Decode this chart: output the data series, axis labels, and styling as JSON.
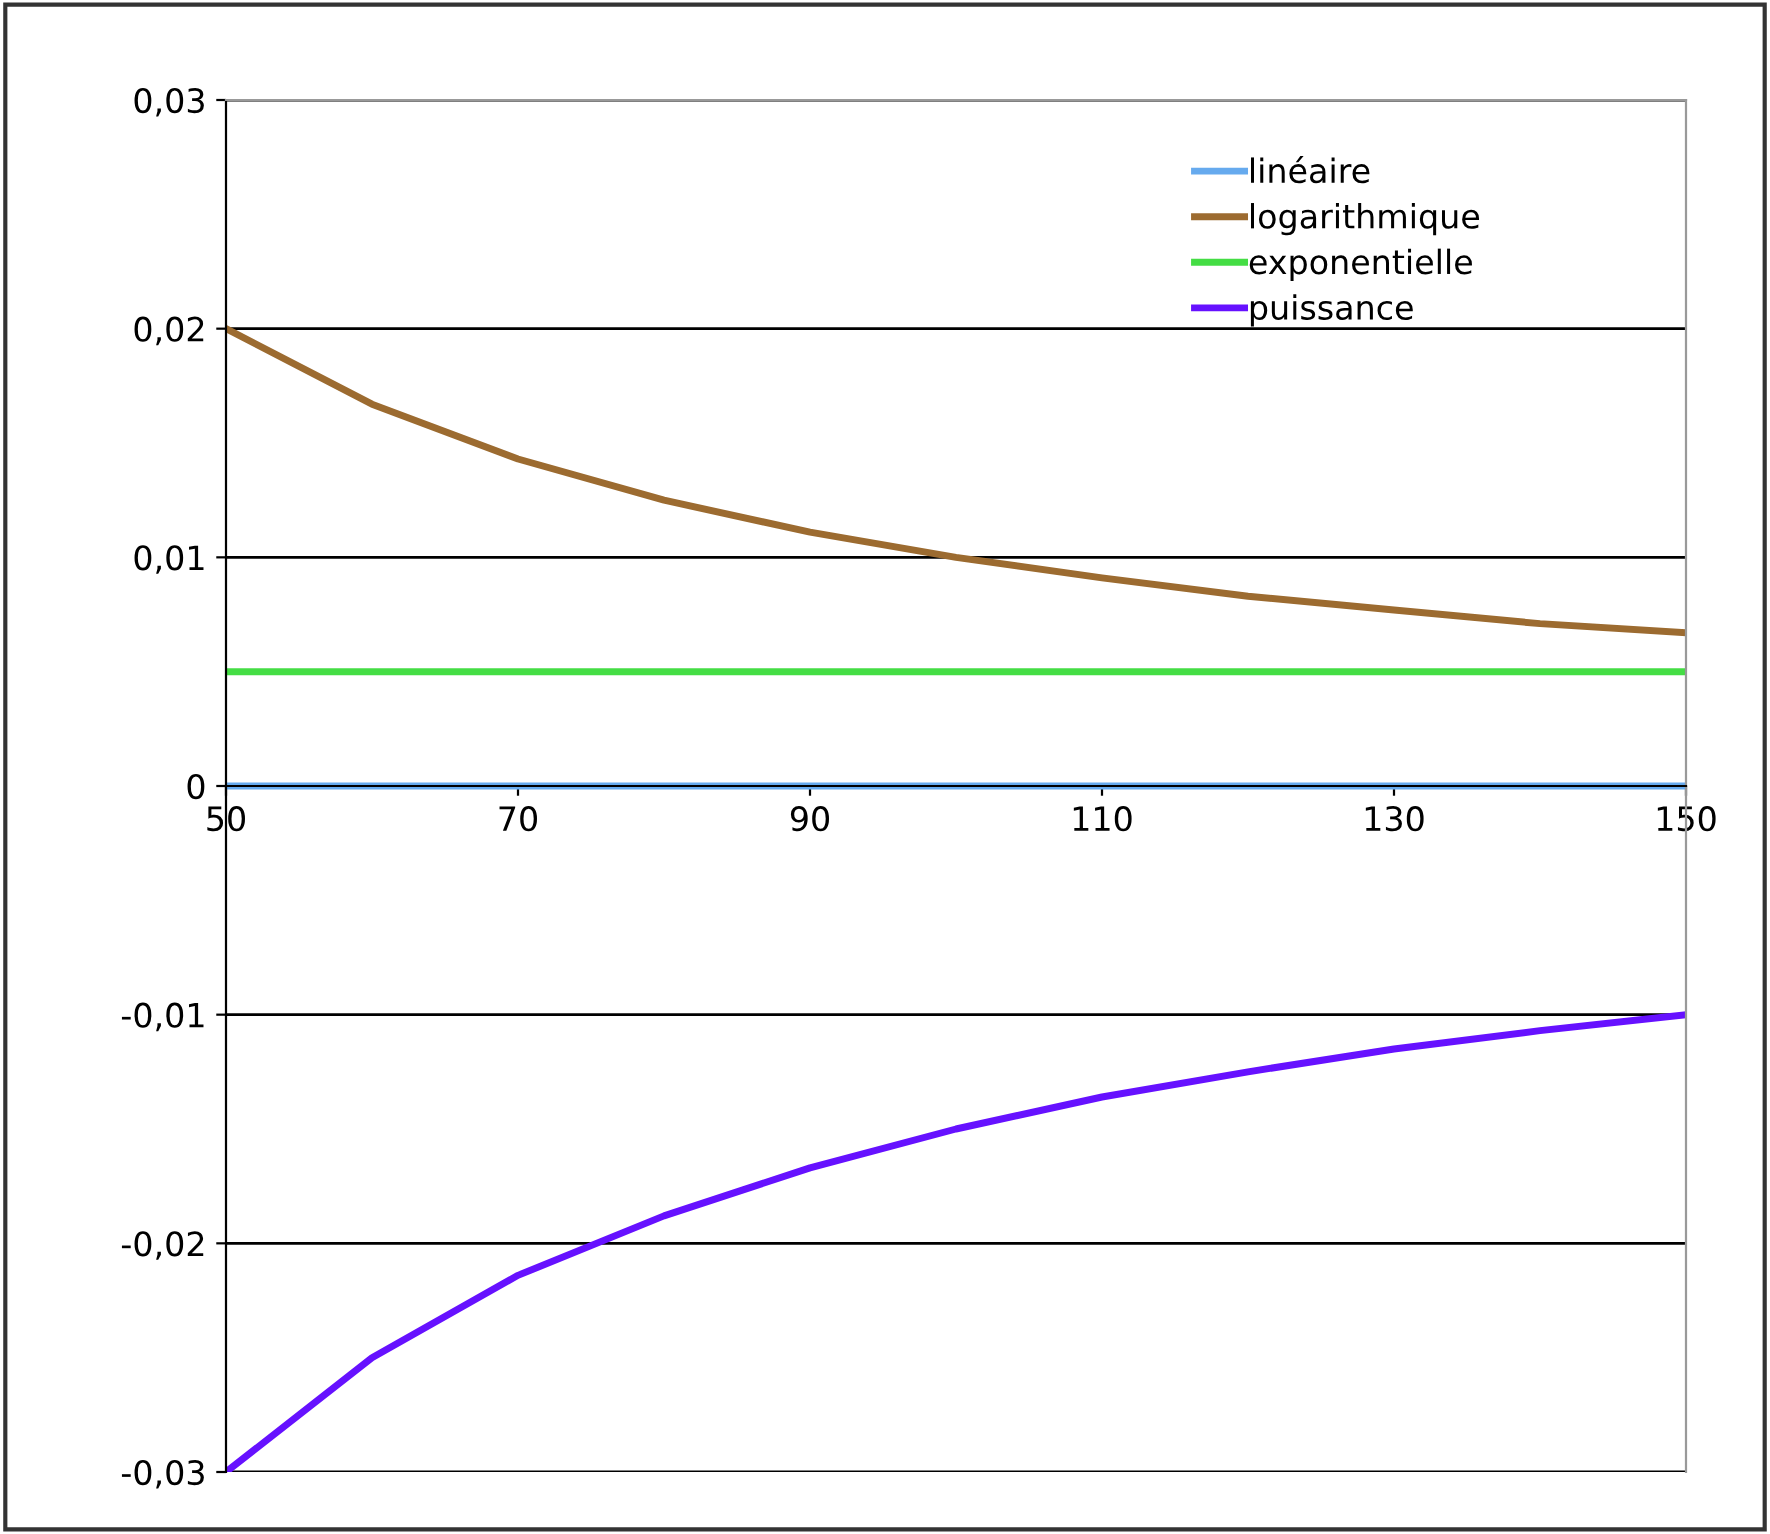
{
  "chart_data": {
    "type": "line",
    "x": [
      50,
      60,
      70,
      80,
      90,
      100,
      110,
      120,
      130,
      140,
      150
    ],
    "series": [
      {
        "name": "linéaire",
        "color": "#66aaee",
        "values": [
          0,
          0,
          0,
          0,
          0,
          0,
          0,
          0,
          0,
          0,
          0
        ]
      },
      {
        "name": "logarithmique",
        "color": "#9c6b30",
        "values": [
          0.02,
          0.0167,
          0.0143,
          0.0125,
          0.0111,
          0.01,
          0.0091,
          0.0083,
          0.0077,
          0.0071,
          0.0067
        ]
      },
      {
        "name": "exponentielle",
        "color": "#44dd44",
        "values": [
          0.005,
          0.005,
          0.005,
          0.005,
          0.005,
          0.005,
          0.005,
          0.005,
          0.005,
          0.005,
          0.005
        ]
      },
      {
        "name": "puissance",
        "color": "#6611ff",
        "values": [
          -0.03,
          -0.025,
          -0.0214,
          -0.0188,
          -0.0167,
          -0.015,
          -0.0136,
          -0.0125,
          -0.0115,
          -0.0107,
          -0.01
        ]
      }
    ],
    "xlim": [
      50,
      150
    ],
    "xticks": [
      50,
      70,
      90,
      110,
      130,
      150
    ],
    "ylim": [
      -0.03,
      0.03
    ],
    "yticks": [
      {
        "value": -0.03,
        "label": "-0,03"
      },
      {
        "value": -0.02,
        "label": "-0,02"
      },
      {
        "value": -0.01,
        "label": "-0,01"
      },
      {
        "value": 0,
        "label": "0"
      },
      {
        "value": 0.01,
        "label": "0,01"
      },
      {
        "value": 0.02,
        "label": "0,02"
      },
      {
        "value": 0.03,
        "label": "0,03"
      }
    ],
    "grid": "y",
    "legend": "top right",
    "marker": "none",
    "line_style": "solid"
  }
}
